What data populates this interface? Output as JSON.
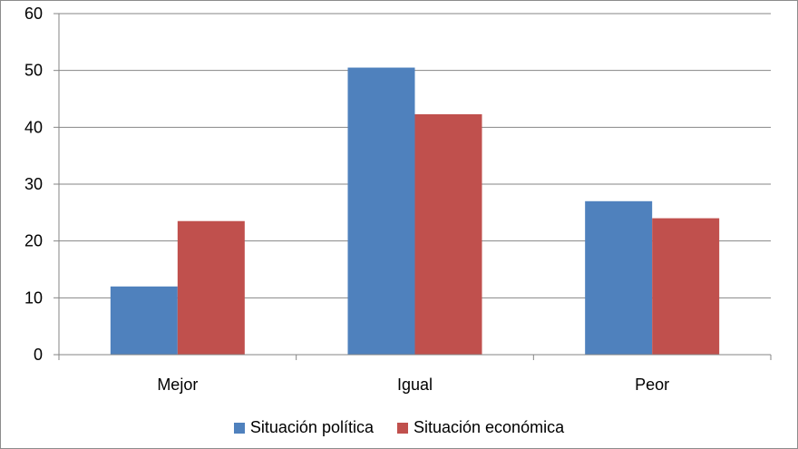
{
  "colors": {
    "series_1": "#4f81bd",
    "series_2": "#c0504d",
    "gridline": "#868686",
    "axis": "#868686"
  },
  "chart_data": {
    "type": "bar",
    "categories": [
      "Mejor",
      "Igual",
      "Peor"
    ],
    "series": [
      {
        "name": "Situación política",
        "values": [
          12,
          50.5,
          27
        ]
      },
      {
        "name": "Situación económica",
        "values": [
          23.5,
          42.3,
          24
        ]
      }
    ],
    "ylim": [
      0,
      60
    ],
    "yticks": [
      "0",
      "10",
      "20",
      "30",
      "40",
      "50",
      "60"
    ],
    "grid": true,
    "legend_position": "bottom",
    "title": "",
    "xlabel": "",
    "ylabel": ""
  }
}
